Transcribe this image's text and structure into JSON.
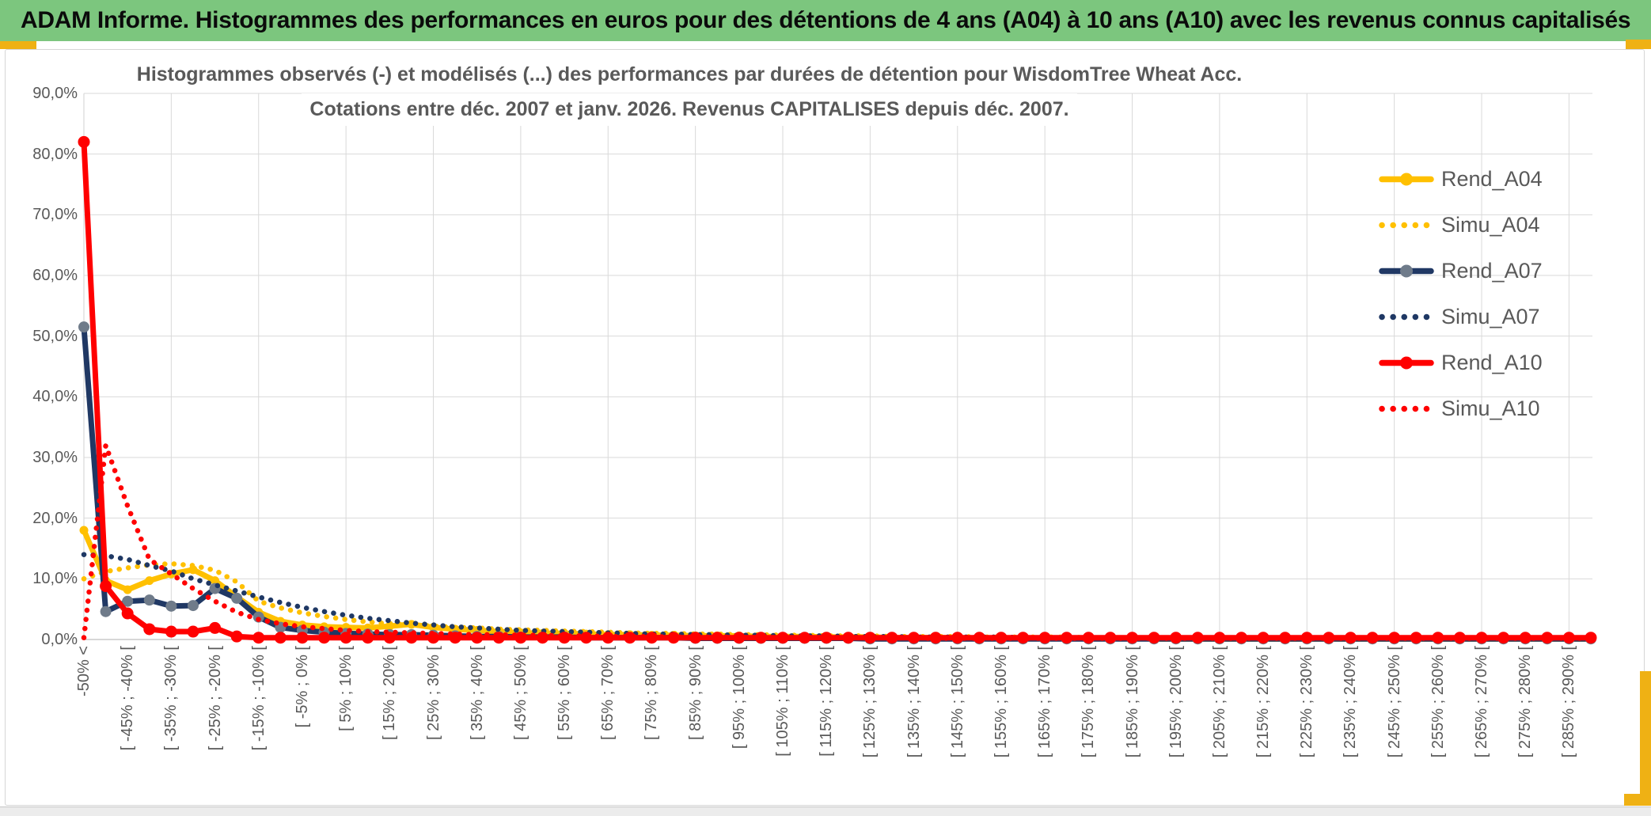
{
  "header": {
    "title": "ADAM Informe. Histogrammes des performances en euros pour des détentions de 4 ans (A04) à 10 ans (A10) avec les revenus connus capitalisés"
  },
  "chart": {
    "title_line1": "Histogrammes observés (-) et modélisés (...) des performances par durées de détention pour WisdomTree Wheat Acc.",
    "title_line2": "Cotations entre déc. 2007 et janv. 2026. Revenus CAPITALISES depuis déc. 2007.",
    "y_axis": {
      "labels": [
        "90,0%",
        "80,0%",
        "70,0%",
        "60,0%",
        "50,0%",
        "40,0%",
        "30,0%",
        "20,0%",
        "10,0%",
        "0,0%"
      ],
      "values": [
        90,
        80,
        70,
        60,
        50,
        40,
        30,
        20,
        10,
        0
      ]
    },
    "legend": [
      {
        "label": "Rend_A04",
        "color": "#FFC000",
        "dotted": false,
        "marker_color": "#FFC000"
      },
      {
        "label": "Simu_A04",
        "color": "#FFC000",
        "dotted": true
      },
      {
        "label": "Rend_A07",
        "color": "#203864",
        "dotted": false,
        "marker_color": "#6F7B8A"
      },
      {
        "label": "Simu_A07",
        "color": "#1F3864",
        "dotted": true
      },
      {
        "label": "Rend_A10",
        "color": "#FF0000",
        "dotted": false,
        "marker_color": "#FF0000"
      },
      {
        "label": "Simu_A10",
        "color": "#FF0000",
        "dotted": true
      }
    ]
  },
  "colors": {
    "header_green": "#7CC67E",
    "gold_accent": "#EFB114",
    "grid": "#D9D9D9",
    "axis_line": "#BFBFBF",
    "text_grey": "#595959",
    "series_gold": "#FFC000",
    "series_navy": "#203864",
    "series_red": "#FF0000",
    "marker_grey": "#6F7B8A"
  },
  "chart_data": {
    "type": "line",
    "n_bins": 70,
    "bin_width_pct": 5,
    "labels_every_n_bins": 2,
    "ylim": [
      0,
      90
    ],
    "grid": true,
    "legend_position": "right",
    "y_tick_format": "percent-comma",
    "x_tick_labels": [
      "-50% <",
      "[ -45% ; -40% [",
      "[ -35% ; -30% [",
      "[ -25% ; -20% [",
      "[ -15% ; -10% [",
      "[ -5% ; 0% [",
      "[ 5% ; 10% [",
      "[ 15% ; 20% [",
      "[ 25% ; 30% [",
      "[ 35% ; 40% [",
      "[ 45% ; 50% [",
      "[ 55% ; 60% [",
      "[ 65% ; 70% [",
      "[ 75% ; 80% [",
      "[ 85% ; 90% [",
      "[ 95% ; 100% [",
      "[ 105% ; 110% [",
      "[ 115% ; 120% [",
      "[ 125% ; 130% [",
      "[ 135% ; 140% [",
      "[ 145% ; 150% [",
      "[ 155% ; 160% [",
      "[ 165% ; 170% [",
      "[ 175% ; 180% [",
      "[ 185% ; 190% [",
      "[ 195% ; 200% [",
      "[ 205% ; 210% [",
      "[ 215% ; 220% [",
      "[ 225% ; 230% [",
      "[ 235% ; 240% [",
      "[ 245% ; 250% [",
      "[ 255% ; 260% [",
      "[ 265% ; 270% [",
      "[ 275% ; 280% [",
      "[ 285% ; 290% ["
    ],
    "series": [
      {
        "name": "Rend_A04",
        "color": "#FFC000",
        "dotted": false,
        "marker_color": "#FFC000",
        "marker_r": 5.5,
        "values": [
          18,
          9.7,
          8.2,
          9.7,
          10.8,
          11.5,
          9.7,
          7,
          4.5,
          3,
          2.4,
          2.1,
          2,
          1.9,
          2.2,
          2.5,
          2,
          1.7,
          1.5,
          1.3,
          1.1,
          1,
          1,
          0.9,
          0.8,
          0.8,
          0.7,
          0.7,
          0.6,
          0.6,
          0.6,
          0.5,
          0.5,
          0.5,
          0.4,
          0.4,
          0.4,
          0.3,
          0.3,
          0.3,
          0.3,
          0.2,
          0.2,
          0.2,
          0.2,
          0.2,
          0.2,
          0.2,
          0.2,
          0.1,
          0.1,
          0.1,
          0.1,
          0.1,
          0.1,
          0.1,
          0.1,
          0.1,
          0.1,
          0.1,
          0.1,
          0.1,
          0.1,
          0.1,
          0.1,
          0.1,
          0.1,
          0.1,
          0.1,
          0.1
        ]
      },
      {
        "name": "Simu_A04",
        "color": "#FFC000",
        "dotted": true,
        "values": [
          10,
          11.2,
          11.8,
          12.3,
          12.5,
          12.2,
          11.4,
          9.5,
          6.3,
          5.2,
          4.4,
          3.8,
          3.3,
          2.9,
          2.6,
          2.4,
          2.2,
          2,
          1.9,
          1.7,
          1.6,
          1.5,
          1.4,
          1.3,
          1.2,
          1.1,
          1,
          1,
          0.9,
          0.9,
          0.8,
          0.8,
          0.7,
          0.7,
          0.6,
          0.6,
          0.6,
          0.5,
          0.5,
          0.5,
          0.5,
          0.4,
          0.4,
          0.4,
          0.4,
          0.4,
          0.3,
          0.3,
          0.3,
          0.3,
          0.3,
          0.3,
          0.3,
          0.2,
          0.2,
          0.2,
          0.2,
          0.2,
          0.2,
          0.2,
          0.2,
          0.2,
          0.2,
          0.2,
          0.2,
          0.2,
          0.1,
          0.1,
          0.1,
          0.1
        ]
      },
      {
        "name": "Rend_A07",
        "color": "#203864",
        "dotted": false,
        "marker_color": "#6F7B8A",
        "marker_r": 7,
        "values": [
          51.5,
          4.6,
          6.3,
          6.5,
          5.5,
          5.6,
          8.4,
          6.8,
          3.7,
          2,
          1.5,
          1.2,
          1,
          0.9,
          0.8,
          0.8,
          0.7,
          0.6,
          0.5,
          0.5,
          0.4,
          0.4,
          0.4,
          0.3,
          0.3,
          0.3,
          0.3,
          0.3,
          0.2,
          0.2,
          0.2,
          0.2,
          0.2,
          0.2,
          0.2,
          0.2,
          0.1,
          0.1,
          0.1,
          0.1,
          0.1,
          0.1,
          0.1,
          0.1,
          0.1,
          0.1,
          0.1,
          0.1,
          0.1,
          0.1,
          0.1,
          0.1,
          0.1,
          0.1,
          0.1,
          0.1,
          0.1,
          0.1,
          0.1,
          0.1,
          0.1,
          0.1,
          0.1,
          0.1,
          0.1,
          0.1,
          0.1,
          0.1,
          0.1,
          0.1
        ]
      },
      {
        "name": "Simu_A07",
        "color": "#1F3864",
        "dotted": true,
        "values": [
          14,
          13.8,
          13.2,
          12.2,
          11.3,
          10,
          9,
          8,
          7,
          6.1,
          5.3,
          4.6,
          4,
          3.5,
          3.1,
          2.7,
          2.4,
          2.1,
          1.9,
          1.7,
          1.5,
          1.4,
          1.3,
          1.2,
          1.1,
          1,
          0.9,
          0.9,
          0.8,
          0.8,
          0.7,
          0.7,
          0.6,
          0.6,
          0.6,
          0.5,
          0.5,
          0.5,
          0.4,
          0.4,
          0.4,
          0.4,
          0.4,
          0.3,
          0.3,
          0.3,
          0.3,
          0.3,
          0.3,
          0.3,
          0.2,
          0.2,
          0.2,
          0.2,
          0.2,
          0.2,
          0.2,
          0.2,
          0.2,
          0.2,
          0.2,
          0.2,
          0.2,
          0.2,
          0.2,
          0.2,
          0.2,
          0.2,
          0.2,
          0.2
        ]
      },
      {
        "name": "Rend_A10",
        "color": "#FF0000",
        "dotted": false,
        "marker_color": "#FF0000",
        "marker_r": 7.5,
        "values": [
          82,
          8.8,
          4.3,
          1.7,
          1.3,
          1.3,
          1.9,
          0.5,
          0.3,
          0.3,
          0.3,
          0.3,
          0.3,
          0.3,
          0.3,
          0.3,
          0.3,
          0.3,
          0.3,
          0.3,
          0.3,
          0.3,
          0.3,
          0.3,
          0.3,
          0.3,
          0.3,
          0.3,
          0.3,
          0.3,
          0.3,
          0.3,
          0.3,
          0.3,
          0.3,
          0.3,
          0.3,
          0.3,
          0.3,
          0.3,
          0.3,
          0.3,
          0.3,
          0.3,
          0.3,
          0.3,
          0.3,
          0.3,
          0.3,
          0.3,
          0.3,
          0.3,
          0.3,
          0.3,
          0.3,
          0.3,
          0.3,
          0.3,
          0.3,
          0.3,
          0.3,
          0.3,
          0.3,
          0.3,
          0.3,
          0.3,
          0.3,
          0.3,
          0.3,
          0.3
        ]
      },
      {
        "name": "Simu_A10",
        "color": "#FF0000",
        "dotted": true,
        "values": [
          0.3,
          32,
          22,
          13.2,
          10.8,
          8.4,
          6.3,
          4.5,
          3.3,
          2.6,
          2.1,
          1.8,
          1.5,
          1.3,
          1.2,
          1.1,
          1,
          0.9,
          0.8,
          0.8,
          0.7,
          0.7,
          0.6,
          0.6,
          0.5,
          0.5,
          0.5,
          0.4,
          0.4,
          0.4,
          0.4,
          0.3,
          0.3,
          0.3,
          0.3,
          0.3,
          0.3,
          0.3,
          0.2,
          0.2,
          0.2,
          0.2,
          0.2,
          0.2,
          0.2,
          0.2,
          0.2,
          0.2,
          0.2,
          0.2,
          0.2,
          0.2,
          0.2,
          0.2,
          0.2,
          0.2,
          0.2,
          0.2,
          0.2,
          0.2,
          0.2,
          0.2,
          0.2,
          0.2,
          0.2,
          0.2,
          0.2,
          0.2,
          0.2,
          0.2
        ]
      }
    ]
  }
}
